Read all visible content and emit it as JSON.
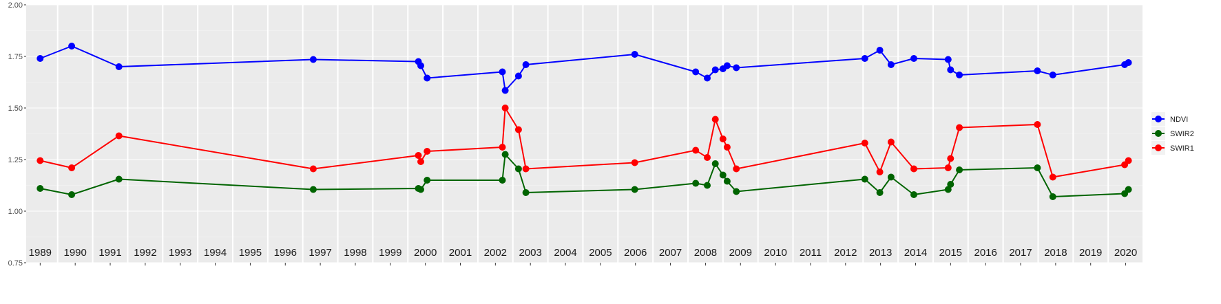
{
  "chart_data": {
    "type": "line",
    "title": "",
    "xlabel": "",
    "ylabel": "",
    "ylim": [
      0.75,
      2.0
    ],
    "xlim": [
      1988.6,
      2020.5
    ],
    "y_ticks": [
      "0.75",
      "1.00",
      "1.25",
      "1.50",
      "1.75",
      "2.00"
    ],
    "x_tick_labels": [
      "1989",
      "1990",
      "1991",
      "1992",
      "1993",
      "1994",
      "1995",
      "1996",
      "1997",
      "1998",
      "1999",
      "2000",
      "2001",
      "2002",
      "2003",
      "2004",
      "2005",
      "2006",
      "2007",
      "2008",
      "2009",
      "2010",
      "2011",
      "2012",
      "2013",
      "2014",
      "2015",
      "2016",
      "2017",
      "2018",
      "2019",
      "2020"
    ],
    "legend_position": "right",
    "grid": true,
    "series": [
      {
        "name": "NDVI",
        "color": "#0000ff",
        "points": [
          [
            1989.0,
            1.74
          ],
          [
            1989.9,
            1.8
          ],
          [
            1991.25,
            1.7
          ],
          [
            1996.8,
            1.735
          ],
          [
            1999.8,
            1.725
          ],
          [
            1999.87,
            1.705
          ],
          [
            2000.05,
            1.645
          ],
          [
            2002.2,
            1.675
          ],
          [
            2002.28,
            1.585
          ],
          [
            2002.66,
            1.655
          ],
          [
            2002.87,
            1.71
          ],
          [
            2005.98,
            1.76
          ],
          [
            2007.72,
            1.675
          ],
          [
            2008.05,
            1.645
          ],
          [
            2008.28,
            1.685
          ],
          [
            2008.5,
            1.69
          ],
          [
            2008.62,
            1.705
          ],
          [
            2008.88,
            1.695
          ],
          [
            2012.55,
            1.74
          ],
          [
            2012.98,
            1.78
          ],
          [
            2013.3,
            1.71
          ],
          [
            2013.95,
            1.74
          ],
          [
            2014.93,
            1.735
          ],
          [
            2015.0,
            1.685
          ],
          [
            2015.25,
            1.66
          ],
          [
            2017.48,
            1.68
          ],
          [
            2017.92,
            1.66
          ],
          [
            2019.97,
            1.71
          ],
          [
            2020.08,
            1.72
          ]
        ]
      },
      {
        "name": "SWIR2",
        "color": "#006400",
        "points": [
          [
            1989.0,
            1.11
          ],
          [
            1989.9,
            1.08
          ],
          [
            1991.25,
            1.155
          ],
          [
            1996.8,
            1.105
          ],
          [
            1999.8,
            1.11
          ],
          [
            1999.87,
            1.105
          ],
          [
            2000.05,
            1.15
          ],
          [
            2002.2,
            1.15
          ],
          [
            2002.28,
            1.275
          ],
          [
            2002.66,
            1.205
          ],
          [
            2002.87,
            1.09
          ],
          [
            2005.98,
            1.105
          ],
          [
            2007.72,
            1.135
          ],
          [
            2008.05,
            1.125
          ],
          [
            2008.28,
            1.23
          ],
          [
            2008.5,
            1.175
          ],
          [
            2008.62,
            1.145
          ],
          [
            2008.88,
            1.095
          ],
          [
            2012.55,
            1.155
          ],
          [
            2012.98,
            1.09
          ],
          [
            2013.3,
            1.165
          ],
          [
            2013.95,
            1.08
          ],
          [
            2014.93,
            1.105
          ],
          [
            2015.0,
            1.13
          ],
          [
            2015.25,
            1.2
          ],
          [
            2017.48,
            1.21
          ],
          [
            2017.92,
            1.07
          ],
          [
            2019.97,
            1.085
          ],
          [
            2020.08,
            1.105
          ]
        ]
      },
      {
        "name": "SWIR1",
        "color": "#ff0000",
        "points": [
          [
            1989.0,
            1.245
          ],
          [
            1989.9,
            1.21
          ],
          [
            1991.25,
            1.365
          ],
          [
            1996.8,
            1.205
          ],
          [
            1999.8,
            1.27
          ],
          [
            1999.87,
            1.24
          ],
          [
            2000.05,
            1.29
          ],
          [
            2002.2,
            1.31
          ],
          [
            2002.28,
            1.5
          ],
          [
            2002.66,
            1.395
          ],
          [
            2002.87,
            1.205
          ],
          [
            2005.98,
            1.235
          ],
          [
            2007.72,
            1.295
          ],
          [
            2008.05,
            1.26
          ],
          [
            2008.28,
            1.445
          ],
          [
            2008.5,
            1.35
          ],
          [
            2008.62,
            1.31
          ],
          [
            2008.88,
            1.205
          ],
          [
            2012.55,
            1.33
          ],
          [
            2012.98,
            1.19
          ],
          [
            2013.3,
            1.335
          ],
          [
            2013.95,
            1.205
          ],
          [
            2014.93,
            1.21
          ],
          [
            2015.0,
            1.255
          ],
          [
            2015.25,
            1.405
          ],
          [
            2017.48,
            1.42
          ],
          [
            2017.92,
            1.165
          ],
          [
            2019.97,
            1.225
          ],
          [
            2020.08,
            1.245
          ]
        ]
      }
    ]
  }
}
